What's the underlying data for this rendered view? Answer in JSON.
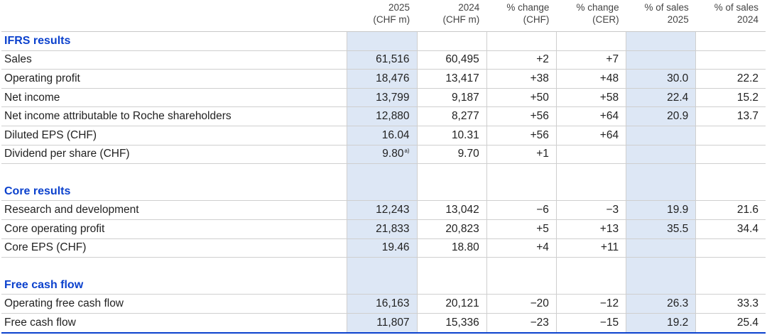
{
  "table": {
    "columns": [
      {
        "line1": "2025",
        "line2": "(CHF m)"
      },
      {
        "line1": "2024",
        "line2": "(CHF m)"
      },
      {
        "line1": "% change",
        "line2": "(CHF)"
      },
      {
        "line1": "% change",
        "line2": "(CER)"
      },
      {
        "line1": "% of sales",
        "line2": "2025"
      },
      {
        "line1": "% of sales",
        "line2": "2024"
      }
    ],
    "sections": [
      {
        "title": "IFRS results",
        "rows": [
          {
            "label": "Sales",
            "cells": [
              "61,516",
              "60,495",
              "+2",
              "+7",
              null,
              null
            ]
          },
          {
            "label": "Operating profit",
            "cells": [
              "18,476",
              "13,417",
              "+38",
              "+48",
              "30.0",
              "22.2"
            ]
          },
          {
            "label": "Net income",
            "cells": [
              "13,799",
              "9,187",
              "+50",
              "+58",
              "22.4",
              "15.2"
            ]
          },
          {
            "label": "Net income attributable to Roche shareholders",
            "cells": [
              "12,880",
              "8,277",
              "+56",
              "+64",
              "20.9",
              "13.7"
            ]
          },
          {
            "label": "Diluted EPS (CHF)",
            "cells": [
              "16.04",
              "10.31",
              "+56",
              "+64",
              null,
              null
            ]
          },
          {
            "label": "Dividend per share (CHF)",
            "cells": [
              {
                "text": "9.80",
                "note": "a)"
              },
              "9.70",
              "+1",
              null,
              null,
              null
            ]
          }
        ]
      },
      {
        "title": "Core results",
        "rows": [
          {
            "label": "Research and development",
            "cells": [
              "12,243",
              "13,042",
              "−6",
              "−3",
              "19.9",
              "21.6"
            ]
          },
          {
            "label": "Core operating profit",
            "cells": [
              "21,833",
              "20,823",
              "+5",
              "+13",
              "35.5",
              "34.4"
            ]
          },
          {
            "label": "Core EPS (CHF)",
            "cells": [
              "19.46",
              "18.80",
              "+4",
              "+11",
              null,
              null
            ]
          }
        ]
      },
      {
        "title": "Free cash flow",
        "rows": [
          {
            "label": "Operating free cash flow",
            "cells": [
              "16,163",
              "20,121",
              "−20",
              "−12",
              "26.3",
              "33.3"
            ]
          },
          {
            "label": "Free cash flow",
            "cells": [
              "11,807",
              "15,336",
              "−23",
              "−15",
              "19.2",
              "25.4"
            ]
          }
        ]
      }
    ]
  }
}
